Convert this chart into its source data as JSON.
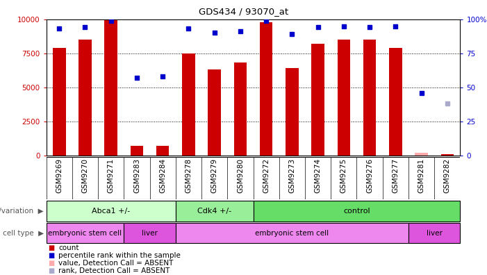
{
  "title": "GDS434 / 93070_at",
  "samples": [
    "GSM9269",
    "GSM9270",
    "GSM9271",
    "GSM9283",
    "GSM9284",
    "GSM9278",
    "GSM9279",
    "GSM9280",
    "GSM9272",
    "GSM9273",
    "GSM9274",
    "GSM9275",
    "GSM9276",
    "GSM9277",
    "GSM9281",
    "GSM9282"
  ],
  "bar_values": [
    7900,
    8500,
    10000,
    700,
    700,
    7500,
    6300,
    6800,
    9800,
    6400,
    8200,
    8500,
    8500,
    7900,
    200,
    100
  ],
  "bar_absent": [
    false,
    false,
    false,
    false,
    false,
    false,
    false,
    false,
    false,
    false,
    false,
    false,
    false,
    false,
    true,
    false
  ],
  "rank_values": [
    93,
    94,
    99,
    57,
    58,
    93,
    90,
    91,
    99,
    89,
    94,
    95,
    94,
    95,
    46,
    38
  ],
  "rank_absent": [
    false,
    false,
    false,
    false,
    false,
    false,
    false,
    false,
    false,
    false,
    false,
    false,
    false,
    false,
    false,
    true
  ],
  "bar_color": "#cc0000",
  "bar_absent_color": "#ffaaaa",
  "rank_color": "#0000cc",
  "rank_absent_color": "#aaaacc",
  "ylim_left": [
    0,
    10000
  ],
  "ylim_right": [
    0,
    100
  ],
  "yticks_left": [
    0,
    2500,
    5000,
    7500,
    10000
  ],
  "ytick_labels_left": [
    "0",
    "2500",
    "5000",
    "7500",
    "10000"
  ],
  "yticks_right": [
    0,
    25,
    50,
    75,
    100
  ],
  "ytick_labels_right": [
    "0",
    "25",
    "50",
    "75",
    "100%"
  ],
  "genotype_groups": [
    {
      "label": "Abca1 +/-",
      "start": 0,
      "end": 5,
      "color": "#ccffcc"
    },
    {
      "label": "Cdk4 +/-",
      "start": 5,
      "end": 8,
      "color": "#99ee99"
    },
    {
      "label": "control",
      "start": 8,
      "end": 16,
      "color": "#66dd66"
    }
  ],
  "celltype_groups": [
    {
      "label": "embryonic stem cell",
      "start": 0,
      "end": 3,
      "color": "#ee88ee"
    },
    {
      "label": "liver",
      "start": 3,
      "end": 5,
      "color": "#dd55dd"
    },
    {
      "label": "embryonic stem cell",
      "start": 5,
      "end": 14,
      "color": "#ee88ee"
    },
    {
      "label": "liver",
      "start": 14,
      "end": 16,
      "color": "#dd55dd"
    }
  ],
  "legend_items": [
    {
      "label": "count",
      "color": "#cc0000"
    },
    {
      "label": "percentile rank within the sample",
      "color": "#0000cc"
    },
    {
      "label": "value, Detection Call = ABSENT",
      "color": "#ffaaaa"
    },
    {
      "label": "rank, Detection Call = ABSENT",
      "color": "#aaaacc"
    }
  ],
  "bar_width": 0.5,
  "rank_marker_size": 5,
  "background_color": "#ffffff"
}
